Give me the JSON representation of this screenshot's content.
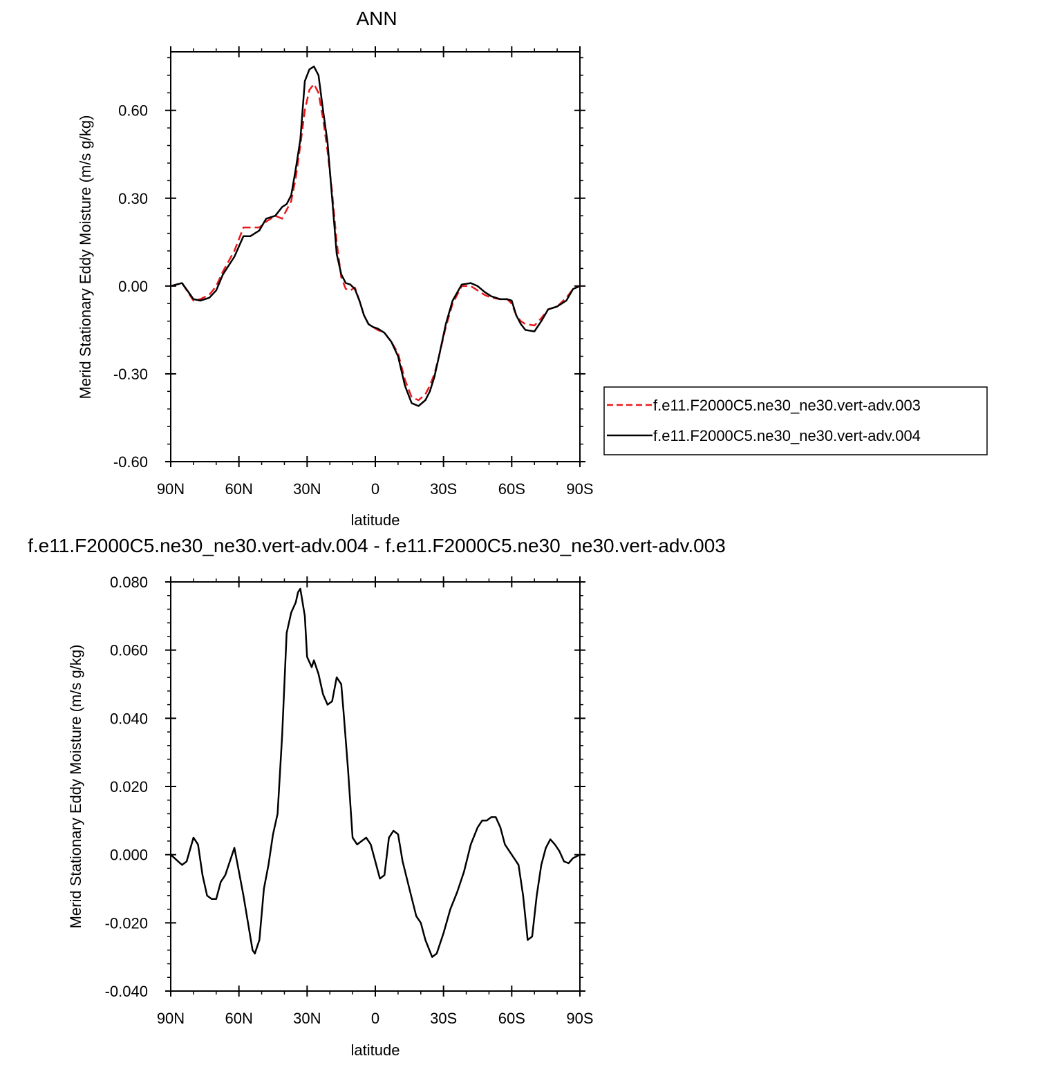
{
  "chart_data": [
    {
      "type": "line",
      "title": "ANN",
      "xlabel": "latitude",
      "ylabel": "Merid Stationary Eddy Moisture (m/s g/kg)",
      "xlim": [
        90,
        -90
      ],
      "ylim": [
        -0.6,
        0.8
      ],
      "x_ticks": [
        90,
        60,
        30,
        0,
        -30,
        -60,
        -90
      ],
      "x_tick_labels": [
        "90N",
        "60N",
        "30N",
        "0",
        "30S",
        "60S",
        "90S"
      ],
      "y_ticks": [
        -0.6,
        -0.3,
        0.0,
        0.3,
        0.6
      ],
      "y_tick_labels": [
        "-0.60",
        "-0.30",
        "0.00",
        "0.30",
        "0.60"
      ],
      "legend_position": "right",
      "series": [
        {
          "name": "f.e11.F2000C5.ne30_ne30.vert-adv.003",
          "color": "#e8191c",
          "dash": "dashed",
          "x": [
            90,
            85,
            80,
            77,
            73,
            70,
            67,
            62,
            58,
            55,
            51,
            48,
            44,
            41,
            39,
            37,
            35,
            33,
            31,
            29,
            27,
            25,
            23,
            21,
            19,
            17,
            15,
            13,
            11,
            9,
            7,
            5,
            3,
            1,
            -1,
            -4,
            -7,
            -10,
            -13,
            -16,
            -19,
            -22,
            -24,
            -26,
            -28,
            -31,
            -34,
            -38,
            -42,
            -45,
            -48,
            -51,
            -55,
            -58,
            -60,
            -62,
            -64,
            -66,
            -70,
            -73,
            -76,
            -80,
            -84,
            -87,
            -90
          ],
          "y": [
            0.0,
            0.01,
            -0.05,
            -0.045,
            -0.03,
            0.0,
            0.05,
            0.12,
            0.2,
            0.2,
            0.2,
            0.22,
            0.24,
            0.23,
            0.26,
            0.29,
            0.37,
            0.48,
            0.6,
            0.67,
            0.69,
            0.66,
            0.57,
            0.46,
            0.32,
            0.15,
            0.03,
            -0.01,
            -0.015,
            -0.005,
            -0.05,
            -0.1,
            -0.13,
            -0.14,
            -0.15,
            -0.16,
            -0.19,
            -0.23,
            -0.32,
            -0.38,
            -0.39,
            -0.37,
            -0.34,
            -0.3,
            -0.24,
            -0.14,
            -0.06,
            0.0,
            0.0,
            -0.015,
            -0.03,
            -0.04,
            -0.045,
            -0.045,
            -0.06,
            -0.1,
            -0.12,
            -0.13,
            -0.135,
            -0.11,
            -0.08,
            -0.07,
            -0.04,
            -0.01,
            0.0
          ]
        },
        {
          "name": "f.e11.F2000C5.ne30_ne30.vert-adv.004",
          "color": "#000000",
          "dash": "solid",
          "x": [
            90,
            85,
            80,
            77,
            73,
            70,
            67,
            62,
            58,
            55,
            51,
            48,
            44,
            41,
            39,
            37,
            35,
            33,
            31,
            29,
            27,
            25,
            23,
            21,
            19,
            17,
            15,
            13,
            11,
            9,
            7,
            5,
            3,
            1,
            -1,
            -4,
            -7,
            -10,
            -13,
            -16,
            -19,
            -22,
            -24,
            -26,
            -28,
            -31,
            -34,
            -38,
            -42,
            -45,
            -48,
            -51,
            -55,
            -58,
            -60,
            -62,
            -64,
            -66,
            -70,
            -73,
            -76,
            -80,
            -84,
            -87,
            -90
          ],
          "y": [
            0.0,
            0.01,
            -0.045,
            -0.05,
            -0.04,
            -0.015,
            0.04,
            0.1,
            0.17,
            0.17,
            0.19,
            0.23,
            0.24,
            0.27,
            0.28,
            0.31,
            0.4,
            0.5,
            0.7,
            0.74,
            0.75,
            0.72,
            0.6,
            0.49,
            0.3,
            0.11,
            0.04,
            0.01,
            0.005,
            -0.01,
            -0.05,
            -0.1,
            -0.13,
            -0.14,
            -0.145,
            -0.16,
            -0.19,
            -0.24,
            -0.34,
            -0.4,
            -0.41,
            -0.39,
            -0.36,
            -0.31,
            -0.24,
            -0.13,
            -0.05,
            0.005,
            0.01,
            0.0,
            -0.02,
            -0.035,
            -0.045,
            -0.045,
            -0.05,
            -0.1,
            -0.13,
            -0.15,
            -0.155,
            -0.12,
            -0.08,
            -0.07,
            -0.05,
            -0.01,
            0.0
          ]
        }
      ]
    },
    {
      "type": "line",
      "title": "f.e11.F2000C5.ne30_ne30.vert-adv.004 - f.e11.F2000C5.ne30_ne30.vert-adv.003",
      "xlabel": "latitude",
      "ylabel": "Merid Stationary Eddy Moisture (m/s g/kg)",
      "xlim": [
        90,
        -90
      ],
      "ylim": [
        -0.04,
        0.08
      ],
      "x_ticks": [
        90,
        60,
        30,
        0,
        -30,
        -60,
        -90
      ],
      "x_tick_labels": [
        "90N",
        "60N",
        "30N",
        "0",
        "30S",
        "60S",
        "90S"
      ],
      "y_ticks": [
        -0.04,
        -0.02,
        0.0,
        0.02,
        0.04,
        0.06,
        0.08
      ],
      "y_tick_labels": [
        "-0.040",
        "-0.020",
        "0.000",
        "0.020",
        "0.040",
        "0.060",
        "0.080"
      ],
      "series": [
        {
          "color": "#000000",
          "dash": "solid",
          "x": [
            90,
            85,
            83,
            80,
            78,
            76,
            74,
            72,
            70,
            68,
            66,
            64,
            62,
            60,
            58,
            56,
            54,
            53,
            51,
            49,
            47,
            45,
            43,
            41,
            39,
            37,
            35,
            34,
            33,
            31,
            30,
            28,
            27,
            25,
            23,
            21,
            19,
            17,
            15,
            14,
            12,
            10,
            8,
            6,
            4,
            2,
            0,
            -2,
            -4,
            -6,
            -8,
            -10,
            -12,
            -15,
            -18,
            -20,
            -22,
            -25,
            -27,
            -30,
            -33,
            -36,
            -39,
            -42,
            -45,
            -47,
            -49,
            -51,
            -53,
            -55,
            -57,
            -59,
            -61,
            -63,
            -65,
            -67,
            -69,
            -71,
            -73,
            -75,
            -77,
            -79,
            -81,
            -83,
            -85,
            -87,
            -90
          ],
          "y": [
            0.0,
            -0.003,
            -0.002,
            0.005,
            0.003,
            -0.006,
            -0.012,
            -0.013,
            -0.013,
            -0.008,
            -0.006,
            -0.002,
            0.002,
            -0.005,
            -0.012,
            -0.02,
            -0.028,
            -0.029,
            -0.025,
            -0.01,
            -0.003,
            0.006,
            0.012,
            0.035,
            0.065,
            0.071,
            0.074,
            0.077,
            0.078,
            0.07,
            0.058,
            0.055,
            0.057,
            0.053,
            0.047,
            0.044,
            0.045,
            0.052,
            0.05,
            0.042,
            0.025,
            0.005,
            0.003,
            0.004,
            0.005,
            0.003,
            -0.002,
            -0.007,
            -0.006,
            0.005,
            0.007,
            0.006,
            -0.002,
            -0.01,
            -0.018,
            -0.02,
            -0.025,
            -0.03,
            -0.029,
            -0.023,
            -0.016,
            -0.011,
            -0.005,
            0.003,
            0.008,
            0.01,
            0.01,
            0.011,
            0.011,
            0.008,
            0.003,
            0.001,
            -0.001,
            -0.003,
            -0.012,
            -0.025,
            -0.024,
            -0.012,
            -0.003,
            0.002,
            0.0045,
            0.003,
            0.001,
            -0.002,
            -0.0025,
            -0.001,
            0.0
          ]
        }
      ]
    }
  ]
}
